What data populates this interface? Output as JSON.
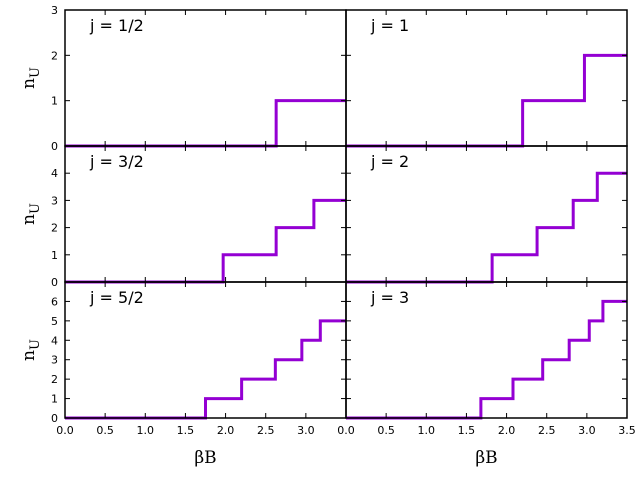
{
  "chart_data": [
    {
      "type": "line",
      "step": true,
      "label": "j = 1/2",
      "ylabel": "nU",
      "xlim": [
        0,
        3.5
      ],
      "ylim": [
        0,
        3
      ],
      "yticks": [
        "0",
        "1",
        "2",
        "3"
      ],
      "x": [
        0,
        2.63,
        3.5
      ],
      "y": [
        0,
        1,
        1
      ]
    },
    {
      "type": "line",
      "step": true,
      "label": "j = 1",
      "xlim": [
        0,
        3.5
      ],
      "ylim": [
        0,
        3
      ],
      "x": [
        0,
        2.2,
        2.97,
        3.5
      ],
      "y": [
        0,
        1,
        2,
        2
      ]
    },
    {
      "type": "line",
      "step": true,
      "label": "j = 3/2",
      "ylabel": "nU",
      "xlim": [
        0,
        3.5
      ],
      "ylim": [
        0,
        5
      ],
      "yticks": [
        "0",
        "1",
        "2",
        "3",
        "4"
      ],
      "x": [
        0,
        1.97,
        2.63,
        3.1,
        3.5
      ],
      "y": [
        0,
        1,
        2,
        3,
        3
      ]
    },
    {
      "type": "line",
      "step": true,
      "label": "j = 2",
      "xlim": [
        0,
        3.5
      ],
      "ylim": [
        0,
        5
      ],
      "x": [
        0,
        1.82,
        2.38,
        2.83,
        3.13,
        3.5
      ],
      "y": [
        0,
        1,
        2,
        3,
        4,
        4
      ]
    },
    {
      "type": "line",
      "step": true,
      "label": "j = 5/2",
      "ylabel": "nU",
      "xlabel": "βB",
      "xlim": [
        0,
        3.5
      ],
      "ylim": [
        0,
        7
      ],
      "yticks": [
        "0",
        "1",
        "2",
        "3",
        "4",
        "5",
        "6"
      ],
      "xticks": [
        "0.0",
        "0.5",
        "1.0",
        "1.5",
        "2.0",
        "2.5",
        "3.0"
      ],
      "x": [
        0,
        1.75,
        2.2,
        2.62,
        2.95,
        3.18,
        3.5
      ],
      "y": [
        0,
        1,
        2,
        3,
        4,
        5,
        5
      ]
    },
    {
      "type": "line",
      "step": true,
      "label": "j = 3",
      "xlabel": "βB",
      "xlim": [
        0,
        3.5
      ],
      "ylim": [
        0,
        7
      ],
      "xticks": [
        "0.0",
        "0.5",
        "1.0",
        "1.5",
        "2.0",
        "2.5",
        "3.0",
        "3.5"
      ],
      "x": [
        0,
        1.68,
        2.08,
        2.45,
        2.78,
        3.03,
        3.2,
        3.5
      ],
      "y": [
        0,
        1,
        2,
        3,
        4,
        5,
        6,
        6
      ]
    }
  ],
  "colors": {
    "series": "#9400d3"
  }
}
